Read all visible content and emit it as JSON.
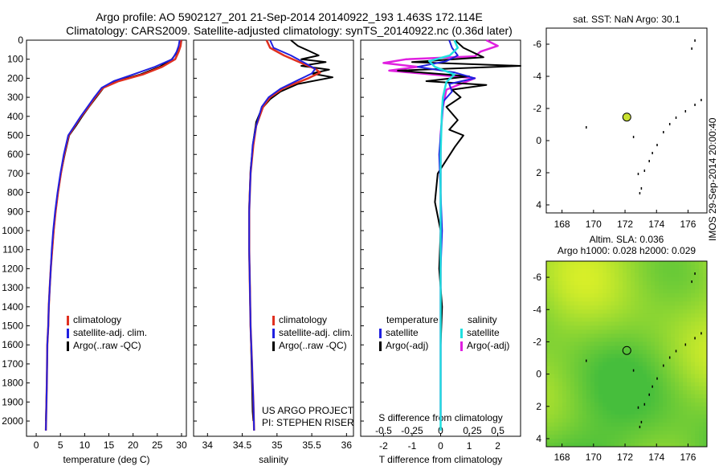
{
  "header": {
    "line1": "Argo profile: AO 5902127_201 21-Sep-2014 20140922_193 1.463S 172.114E",
    "line2": "Climatology: CARS2009. Satellite-adjusted climatology: synTS_20140922.nc (0.36d later)"
  },
  "colors": {
    "climatology": "#e03020",
    "satellite": "#2020e0",
    "argo": "#000000",
    "t_sat": "#20e0e0",
    "s_sat": "#20e0e0",
    "s_argo": "#e020e0"
  },
  "chart_data": [
    {
      "type": "line",
      "name": "temperature-panel",
      "xlabel": "temperature (deg C)",
      "ylabel": "",
      "xlim": [
        -2,
        31
      ],
      "ylim": [
        2080,
        0
      ],
      "xticks": [
        0,
        5,
        10,
        15,
        20,
        25,
        30
      ],
      "yticks": [
        0,
        100,
        200,
        300,
        400,
        500,
        600,
        700,
        800,
        900,
        1000,
        1100,
        1200,
        1300,
        1400,
        1500,
        1600,
        1700,
        1800,
        1900,
        2000
      ],
      "legend": [
        "climatology",
        "satellite-adj. clim.",
        "Argo(..raw -QC)"
      ],
      "series": [
        {
          "name": "climatology",
          "x": [
            29.9,
            29.8,
            29.4,
            28.7,
            26.0,
            22.0,
            17.0,
            13.8,
            12.2,
            10.8,
            9.3,
            8.0,
            6.7,
            5.8,
            5.1,
            4.5,
            4.0,
            3.6,
            3.3,
            3.0,
            2.8,
            2.6,
            2.5,
            2.3,
            2.2,
            2.0
          ],
          "y": [
            0,
            30,
            60,
            100,
            140,
            180,
            215,
            250,
            300,
            350,
            400,
            450,
            500,
            600,
            700,
            800,
            900,
            1000,
            1100,
            1200,
            1300,
            1400,
            1500,
            1600,
            1800,
            2050
          ]
        },
        {
          "name": "satellite-adj. clim.",
          "x": [
            29.6,
            29.4,
            29.0,
            28.1,
            24.5,
            20.0,
            16.0,
            13.5,
            12.0,
            10.6,
            9.2,
            7.9,
            6.6,
            5.7,
            5.0,
            4.4,
            3.9,
            3.5,
            3.2,
            3.0,
            2.8,
            2.6,
            2.5,
            2.3,
            2.2,
            2.0
          ],
          "y": [
            0,
            30,
            60,
            100,
            140,
            180,
            215,
            250,
            300,
            350,
            400,
            450,
            500,
            600,
            700,
            800,
            900,
            1000,
            1100,
            1200,
            1300,
            1400,
            1500,
            1600,
            1800,
            2050
          ]
        },
        {
          "name": "Argo(..raw -QC)",
          "x": [
            30.0,
            29.8,
            29.2,
            28.0,
            25.5,
            21.5,
            16.5,
            13.9,
            12.4,
            10.9,
            9.5,
            8.2,
            6.8,
            5.9,
            5.1,
            4.5,
            4.0,
            3.6,
            3.3,
            3.0,
            2.8,
            2.6,
            2.5,
            2.3,
            2.2,
            2.0
          ],
          "y": [
            0,
            30,
            60,
            100,
            140,
            180,
            215,
            250,
            300,
            350,
            400,
            450,
            500,
            600,
            700,
            800,
            900,
            1000,
            1100,
            1200,
            1300,
            1400,
            1500,
            1600,
            1800,
            2000
          ]
        }
      ]
    },
    {
      "type": "line",
      "name": "salinity-panel",
      "xlabel": "salinity",
      "ylabel": "",
      "xlim": [
        33.8,
        36.1
      ],
      "ylim": [
        2080,
        0
      ],
      "xticks": [
        34,
        34.5,
        35,
        35.5,
        36
      ],
      "legend": [
        "climatology",
        "satellite-adj. clim.",
        "Argo(..raw -QC)"
      ],
      "annotation": [
        "US ARGO PROJECT",
        "PI: STEPHEN RISER"
      ],
      "series": [
        {
          "name": "climatology",
          "x": [
            34.85,
            34.9,
            35.1,
            35.35,
            35.55,
            35.62,
            35.45,
            35.1,
            34.9,
            34.8,
            34.7,
            34.66,
            34.62,
            34.6,
            34.6,
            34.6,
            34.61,
            34.62,
            34.63,
            34.64,
            34.65,
            34.66,
            34.67
          ],
          "y": [
            0,
            40,
            80,
            120,
            150,
            170,
            200,
            250,
            300,
            350,
            450,
            550,
            700,
            900,
            1000,
            1100,
            1300,
            1500,
            1600,
            1700,
            1800,
            1900,
            2050
          ]
        },
        {
          "name": "satellite-adj. clim.",
          "x": [
            34.9,
            34.95,
            35.2,
            35.4,
            35.55,
            35.5,
            35.3,
            35.05,
            34.88,
            34.78,
            34.7,
            34.65,
            34.62,
            34.6,
            34.6,
            34.6,
            34.61,
            34.62,
            34.63,
            34.64,
            34.65,
            34.66,
            34.67
          ],
          "y": [
            0,
            40,
            80,
            120,
            150,
            175,
            210,
            255,
            300,
            350,
            450,
            550,
            700,
            900,
            1000,
            1100,
            1300,
            1500,
            1600,
            1700,
            1800,
            1900,
            2050
          ]
        },
        {
          "name": "Argo(..raw -QC)",
          "x": [
            35.2,
            35.3,
            35.45,
            35.6,
            35.35,
            35.7,
            35.35,
            35.75,
            35.5,
            35.8,
            35.3,
            35.05,
            34.9,
            34.78,
            34.7,
            34.66,
            34.62,
            34.6,
            34.6,
            34.61,
            34.62,
            34.63,
            34.64,
            34.65,
            34.66
          ],
          "y": [
            0,
            30,
            55,
            80,
            100,
            115,
            135,
            155,
            175,
            195,
            230,
            270,
            310,
            360,
            430,
            530,
            680,
            880,
            1100,
            1300,
            1500,
            1650,
            1800,
            1950,
            2000
          ]
        }
      ]
    },
    {
      "type": "line",
      "name": "difference-panel",
      "xlabel": "T difference from climatology",
      "ylabel": "",
      "xlim": [
        -2.8,
        2.8
      ],
      "ylim": [
        2080,
        0
      ],
      "xticks": [
        -2,
        -1,
        0,
        1,
        2
      ],
      "top_label": "S difference from climatology",
      "top_ticks": [
        "-0.5",
        "-0.25",
        "0",
        "0.25",
        "0.5"
      ],
      "legend_headers": [
        "temperature",
        "salinity"
      ],
      "legend": [
        "satellite",
        "Argo(-adj)",
        "satellite",
        "Argo(-adj)"
      ],
      "series": [
        {
          "name": "T satellite",
          "x": [
            0.3,
            0.4,
            0.6,
            0.2,
            -0.8,
            0.5,
            1.2,
            0.3,
            0.4,
            0.1,
            0.05,
            0.0,
            -0.05,
            0.0,
            0.05,
            0.0,
            0.0,
            0.0,
            0.0,
            0.0
          ],
          "y": [
            0,
            40,
            80,
            110,
            140,
            170,
            200,
            230,
            270,
            320,
            400,
            500,
            600,
            800,
            1000,
            1200,
            1400,
            1600,
            1800,
            2050
          ]
        },
        {
          "name": "T Argo(-adj)",
          "x": [
            0.5,
            0.8,
            1.5,
            -1.0,
            2.8,
            -1.5,
            1.0,
            -0.5,
            1.6,
            0.4,
            0.7,
            0.2,
            0.6,
            0.3,
            0.8,
            0.5,
            -0.1,
            -0.2,
            0.0,
            -0.05,
            0.05,
            0.0,
            0.0,
            0.0
          ],
          "y": [
            0,
            40,
            90,
            115,
            135,
            160,
            190,
            215,
            235,
            260,
            300,
            350,
            420,
            470,
            500,
            560,
            700,
            850,
            1000,
            1200,
            1400,
            1600,
            1800,
            2000
          ]
        },
        {
          "name": "S satellite",
          "x": [
            0.12,
            0.15,
            0.08,
            -0.1,
            -0.05,
            0.12,
            0.05,
            0.02,
            0.01,
            0.0,
            0.0,
            0.0,
            0.0,
            0.0
          ],
          "y": [
            0,
            40,
            80,
            110,
            140,
            180,
            220,
            300,
            400,
            600,
            900,
            1200,
            1600,
            2050
          ]
        },
        {
          "name": "S Argo(-adj)",
          "x": [
            0.4,
            0.5,
            0.35,
            0.3,
            -0.3,
            -0.5,
            -0.2,
            -0.45,
            0.3,
            0.05,
            0.02,
            0.0,
            0.0,
            0.0,
            0.0
          ],
          "y": [
            0,
            30,
            60,
            85,
            100,
            120,
            140,
            160,
            200,
            260,
            350,
            500,
            800,
            1200,
            2000
          ]
        }
      ]
    },
    {
      "type": "scatter",
      "name": "sst-map",
      "title": "sat. SST: NaN Argo: 30.1",
      "xlim": [
        167,
        177.2
      ],
      "ylim": [
        -7,
        4.5
      ],
      "xticks": [
        168,
        170,
        172,
        174,
        176
      ],
      "yticks": [
        4,
        2,
        0,
        -2,
        -4,
        -6
      ],
      "marker": {
        "lon": 172.114,
        "lat": -1.463
      }
    },
    {
      "type": "heatmap",
      "name": "sla-map",
      "title_line1": "Altim. SLA: 0.036",
      "title_line2": "Argo h1000: 0.028 h2000: 0.029",
      "xlim": [
        167,
        177.2
      ],
      "ylim": [
        -7,
        4.5
      ],
      "xticks": [
        168,
        170,
        172,
        174,
        176
      ],
      "yticks": [
        4,
        2,
        0,
        -2,
        -4,
        -6
      ],
      "marker": {
        "lon": 172.114,
        "lat": -1.463
      }
    }
  ],
  "side_note": "IMOS 29-Sep-2014 20:00:40"
}
